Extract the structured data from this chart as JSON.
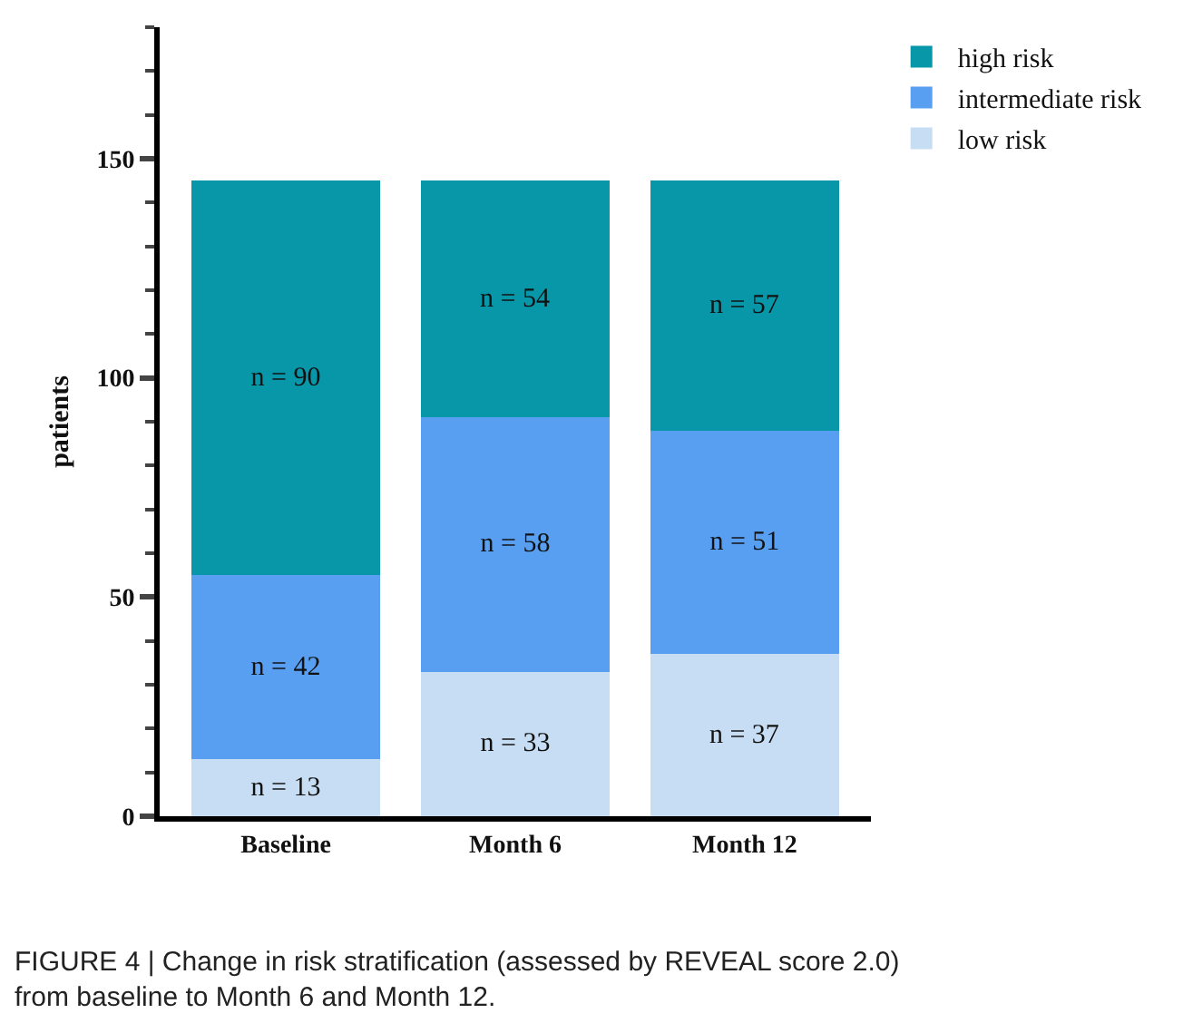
{
  "chart_data": {
    "type": "bar",
    "stacked": true,
    "ylabel": "patients",
    "categories": [
      "Baseline",
      "Month 6",
      "Month 12"
    ],
    "series": [
      {
        "name": "low risk",
        "color": "#c6ddf3",
        "values": [
          13,
          33,
          37
        ],
        "value_labels": [
          "n = 13",
          "n = 33",
          "n = 37"
        ]
      },
      {
        "name": "intermediate risk",
        "color": "#589ff2",
        "values": [
          42,
          58,
          51
        ],
        "value_labels": [
          "n = 42",
          "n = 58",
          "n = 51"
        ]
      },
      {
        "name": "high risk",
        "color": "#0897a9",
        "values": [
          90,
          54,
          57
        ],
        "value_labels": [
          "n = 90",
          "n = 54",
          "n = 57"
        ]
      }
    ],
    "ylim": [
      0,
      180
    ],
    "yticks": [
      0,
      50,
      100,
      150
    ],
    "grid": false,
    "legend": "top right",
    "annotations": [
      "FIGURE 4 | Change in risk stratification (assessed by REVEAL score 2.0) from baseline to Month 6 and Month 12."
    ]
  }
}
